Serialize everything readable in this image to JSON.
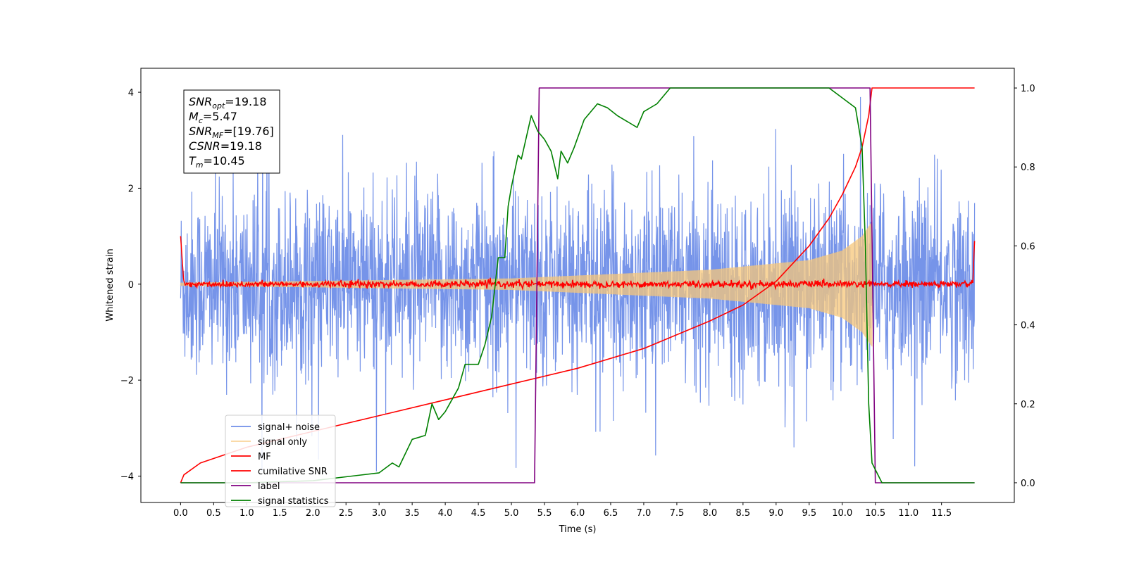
{
  "chart_data": {
    "type": "line",
    "title": "",
    "xlabel": "Time (s)",
    "ylabel": "Whitened strain",
    "xlim": [
      -0.6,
      12.6
    ],
    "ylim": [
      -4.55,
      4.5
    ],
    "y2lim": [
      -0.05,
      1.05
    ],
    "x_ticks": [
      0.0,
      0.5,
      1.0,
      1.5,
      2.0,
      2.5,
      3.0,
      3.5,
      4.0,
      4.5,
      5.0,
      5.5,
      6.0,
      6.5,
      7.0,
      7.5,
      8.0,
      8.5,
      9.0,
      9.5,
      10.0,
      10.5,
      11.0,
      11.5
    ],
    "x_tick_labels": [
      "0.0",
      "0.5",
      "1.0",
      "1.5",
      "2.0",
      "2.5",
      "3.0",
      "3.5",
      "4.0",
      "4.5",
      "5.0",
      "5.5",
      "6.0",
      "6.5",
      "7.0",
      "7.5",
      "8.0",
      "8.5",
      "9.0",
      "9.5",
      "10.0",
      "10.5",
      "11.0",
      "11.5"
    ],
    "y_ticks": [
      -4,
      -2,
      0,
      2,
      4
    ],
    "y_tick_labels": [
      "−4",
      "−2",
      "0",
      "2",
      "4"
    ],
    "y2_ticks": [
      0.0,
      0.2,
      0.4,
      0.6,
      0.8,
      1.0
    ],
    "y2_tick_labels": [
      "0.0",
      "0.2",
      "0.4",
      "0.6",
      "0.8",
      "1.0"
    ],
    "grid": false,
    "legend_position": "lower-left",
    "annotation": {
      "lines": [
        {
          "sym": "SNR",
          "sub": "opt",
          "val": "=19.18"
        },
        {
          "sym": "M",
          "sub": "c",
          "val": "=5.47"
        },
        {
          "sym": "SNR",
          "sub": "MF",
          "val": "=[19.76]"
        },
        {
          "sym": "CSNR",
          "sub": "",
          "val": "=19.18"
        },
        {
          "sym": "T",
          "sub": "m",
          "val": "=10.45"
        }
      ]
    },
    "series": [
      {
        "name": "signal+ noise",
        "axis": "left",
        "color": "#6f8ee8",
        "kind": "noise",
        "x_range": [
          0.0,
          12.0
        ],
        "envelope_typical": 1.5,
        "peaks_approx": [
          2.7,
          -3.7
        ]
      },
      {
        "name": "signal only",
        "axis": "left",
        "color": "#f7c77a",
        "kind": "chirp",
        "x_range": [
          0.0,
          10.45
        ],
        "amplitude_at": [
          [
            0.0,
            0.03
          ],
          [
            5.0,
            0.12
          ],
          [
            8.0,
            0.3
          ],
          [
            9.5,
            0.5
          ],
          [
            10.0,
            0.7
          ],
          [
            10.3,
            1.0
          ],
          [
            10.45,
            1.3
          ]
        ]
      },
      {
        "name": "MF",
        "axis": "left",
        "color": "#ff0000",
        "kind": "matched-filter",
        "x_range": [
          0.0,
          12.0
        ],
        "baseline": 0.0,
        "edge_values": [
          1.0,
          0.9
        ]
      },
      {
        "name": "cumilative SNR",
        "axis": "right",
        "color": "#ff0000",
        "kind": "line",
        "x": [
          0.0,
          0.05,
          0.3,
          1.0,
          2.0,
          3.0,
          4.0,
          5.0,
          6.0,
          7.0,
          8.0,
          8.5,
          9.0,
          9.5,
          9.8,
          10.0,
          10.2,
          10.3,
          10.4,
          10.45,
          12.0
        ],
        "y": [
          0.0,
          0.02,
          0.05,
          0.09,
          0.13,
          0.17,
          0.21,
          0.25,
          0.29,
          0.34,
          0.41,
          0.45,
          0.51,
          0.6,
          0.67,
          0.73,
          0.8,
          0.85,
          0.93,
          1.0,
          1.0
        ]
      },
      {
        "name": "label",
        "axis": "right",
        "color": "#800080",
        "kind": "step",
        "x": [
          0.0,
          5.35,
          5.42,
          10.42,
          10.5,
          12.0
        ],
        "y": [
          0.0,
          0.0,
          1.0,
          1.0,
          0.0,
          0.0
        ]
      },
      {
        "name": "signal statistics",
        "axis": "right",
        "color": "#008000",
        "kind": "line",
        "x": [
          0.0,
          1.0,
          2.0,
          2.5,
          3.0,
          3.2,
          3.3,
          3.5,
          3.7,
          3.8,
          3.9,
          4.0,
          4.2,
          4.3,
          4.5,
          4.6,
          4.7,
          4.8,
          4.9,
          4.95,
          5.0,
          5.1,
          5.15,
          5.3,
          5.4,
          5.5,
          5.6,
          5.7,
          5.75,
          5.85,
          5.95,
          6.1,
          6.3,
          6.45,
          6.6,
          6.8,
          6.9,
          7.0,
          7.2,
          7.4,
          7.6,
          8.0,
          9.0,
          9.8,
          10.2,
          10.3,
          10.35,
          10.4,
          10.45,
          10.6,
          12.0
        ],
        "y": [
          0.0,
          0.0,
          0.005,
          0.015,
          0.025,
          0.05,
          0.04,
          0.11,
          0.12,
          0.2,
          0.16,
          0.18,
          0.24,
          0.3,
          0.3,
          0.35,
          0.42,
          0.57,
          0.57,
          0.7,
          0.75,
          0.83,
          0.82,
          0.93,
          0.89,
          0.87,
          0.84,
          0.77,
          0.84,
          0.81,
          0.85,
          0.92,
          0.96,
          0.95,
          0.93,
          0.91,
          0.9,
          0.94,
          0.96,
          1.0,
          1.0,
          1.0,
          1.0,
          1.0,
          0.95,
          0.85,
          0.6,
          0.2,
          0.05,
          0.0,
          0.0
        ]
      }
    ]
  }
}
